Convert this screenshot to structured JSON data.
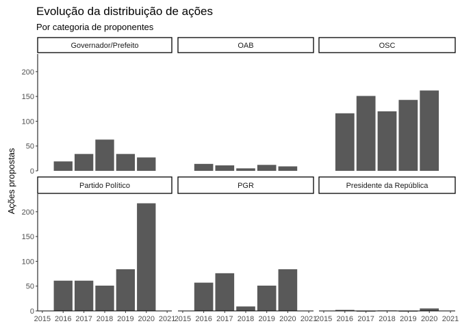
{
  "chart_data": {
    "type": "bar",
    "title": "Evolução da distribuição de ações",
    "subtitle": "Por categoria de proponentes",
    "xlabel": "",
    "ylabel": "Ações propostas",
    "x_ticks": [
      "2015",
      "2016",
      "2017",
      "2018",
      "2019",
      "2020",
      "2021"
    ],
    "xlim": [
      2015,
      2021
    ],
    "y_ticks": [
      "0",
      "50",
      "100",
      "150",
      "200"
    ],
    "ylim": [
      0,
      225
    ],
    "grid": false,
    "bar_color": "#595959",
    "categories": [
      "2016",
      "2017",
      "2018",
      "2019",
      "2020"
    ],
    "facets": [
      {
        "name": "Governador/Prefeito",
        "values": [
          19,
          34,
          63,
          34,
          27
        ]
      },
      {
        "name": "OAB",
        "values": [
          14,
          11,
          5,
          12,
          9
        ]
      },
      {
        "name": "OSC",
        "values": [
          116,
          151,
          120,
          143,
          162
        ]
      },
      {
        "name": "Partido Político",
        "values": [
          61,
          61,
          51,
          84,
          217
        ]
      },
      {
        "name": "PGR",
        "values": [
          57,
          76,
          9,
          51,
          84
        ]
      },
      {
        "name": "Presidente da República",
        "values": [
          2,
          0,
          1,
          0,
          5
        ]
      }
    ]
  }
}
